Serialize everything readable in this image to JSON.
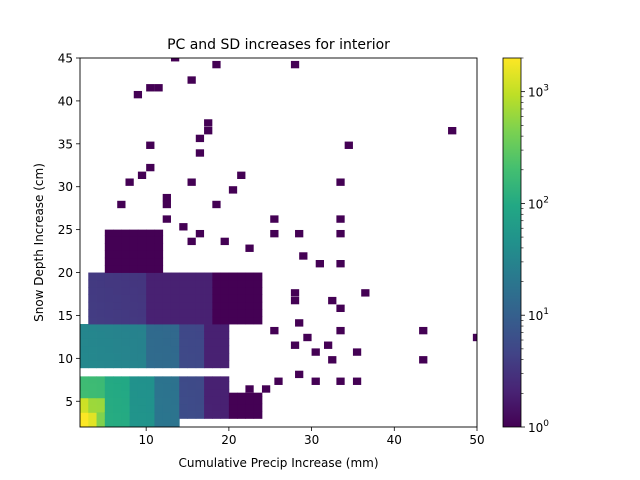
{
  "chart_data": {
    "type": "heatmap",
    "title": "PC and SD increases for interior",
    "xlabel": "Cumulative Precip Increase (mm)",
    "ylabel": "Snow Depth Increase (cm)",
    "xlim": [
      2,
      50
    ],
    "ylim": [
      2,
      45
    ],
    "xticks": [
      10,
      20,
      30,
      40,
      50
    ],
    "yticks": [
      5,
      10,
      15,
      20,
      25,
      30,
      35,
      40,
      45
    ],
    "colorbar": {
      "scale": "log",
      "colormap": "viridis",
      "min": 1,
      "max": 2000,
      "ticks": [
        {
          "value": 1,
          "base": "10",
          "exp": "0"
        },
        {
          "value": 10,
          "base": "10",
          "exp": "1"
        },
        {
          "value": 100,
          "base": "10",
          "exp": "2"
        },
        {
          "value": 1000,
          "base": "10",
          "exp": "3"
        }
      ]
    },
    "bin_width": [
      1,
      0.86
    ],
    "grid": false,
    "legend": "none",
    "regions": [
      {
        "x": [
          2,
          3
        ],
        "y": [
          2,
          3.7
        ],
        "count": 2000
      },
      {
        "x": [
          3,
          4
        ],
        "y": [
          2,
          3.7
        ],
        "count": 1500
      },
      {
        "x": [
          2,
          3
        ],
        "y": [
          3.7,
          5.4
        ],
        "count": 1200
      },
      {
        "x": [
          3,
          5
        ],
        "y": [
          3.7,
          5.4
        ],
        "count": 700
      },
      {
        "x": [
          4,
          6
        ],
        "y": [
          2,
          3.7
        ],
        "count": 500
      },
      {
        "x": [
          2,
          5
        ],
        "y": [
          5.4,
          7.9
        ],
        "count": 200
      },
      {
        "x": [
          5,
          8
        ],
        "y": [
          2,
          7.9
        ],
        "count": 120
      },
      {
        "x": [
          8,
          11
        ],
        "y": [
          2,
          7.9
        ],
        "count": 60
      },
      {
        "x": [
          11,
          14
        ],
        "y": [
          2,
          7.9
        ],
        "count": 25
      },
      {
        "x": [
          14,
          17
        ],
        "y": [
          3,
          7.9
        ],
        "count": 8
      },
      {
        "x": [
          17,
          20
        ],
        "y": [
          3,
          7.9
        ],
        "count": 3
      },
      {
        "x": [
          20,
          24
        ],
        "y": [
          3,
          6
        ],
        "count": 1
      },
      {
        "x": [
          2,
          10
        ],
        "y": [
          8.9,
          14.0
        ],
        "count": 40
      },
      {
        "x": [
          10,
          14
        ],
        "y": [
          8.9,
          14.0
        ],
        "count": 20
      },
      {
        "x": [
          14,
          17
        ],
        "y": [
          8.9,
          14.0
        ],
        "count": 8
      },
      {
        "x": [
          17,
          20
        ],
        "y": [
          8.9,
          14.0
        ],
        "count": 3
      },
      {
        "x": [
          3,
          10
        ],
        "y": [
          14.0,
          20.0
        ],
        "count": 5
      },
      {
        "x": [
          10,
          18
        ],
        "y": [
          14.0,
          20.0
        ],
        "count": 3
      },
      {
        "x": [
          18,
          24
        ],
        "y": [
          14.0,
          20.0
        ],
        "count": 1
      },
      {
        "x": [
          5,
          12
        ],
        "y": [
          20.0,
          25.0
        ],
        "count": 1
      }
    ],
    "sparse_cells": [
      [
        13,
        44.6
      ],
      [
        18,
        43.8
      ],
      [
        27.5,
        43.8
      ],
      [
        15,
        42.0
      ],
      [
        10,
        41.1
      ],
      [
        11,
        41.1
      ],
      [
        8.5,
        40.3
      ],
      [
        17,
        37.0
      ],
      [
        17,
        36.1
      ],
      [
        46.5,
        36.1
      ],
      [
        16,
        35.2
      ],
      [
        10,
        34.4
      ],
      [
        34,
        34.4
      ],
      [
        16,
        33.5
      ],
      [
        10,
        31.8
      ],
      [
        9,
        30.9
      ],
      [
        21,
        30.9
      ],
      [
        7.5,
        30.1
      ],
      [
        15,
        30.1
      ],
      [
        33,
        30.1
      ],
      [
        20,
        29.2
      ],
      [
        12,
        28.3
      ],
      [
        18,
        27.5
      ],
      [
        6.5,
        27.5
      ],
      [
        12,
        27.5
      ],
      [
        25,
        25.8
      ],
      [
        33,
        25.8
      ],
      [
        12,
        25.8
      ],
      [
        14,
        24.9
      ],
      [
        28,
        24.1
      ],
      [
        25,
        24.1
      ],
      [
        33,
        24.1
      ],
      [
        16,
        24.1
      ],
      [
        15,
        23.2
      ],
      [
        19,
        23.2
      ],
      [
        22,
        22.4
      ],
      [
        28.5,
        21.5
      ],
      [
        30.5,
        20.6
      ],
      [
        33,
        20.6
      ],
      [
        36,
        17.2
      ],
      [
        32,
        16.3
      ],
      [
        27.5,
        17.2
      ],
      [
        27.5,
        16.3
      ],
      [
        33,
        15.4
      ],
      [
        28,
        13.7
      ],
      [
        43,
        12.8
      ],
      [
        33,
        12.8
      ],
      [
        29,
        12.0
      ],
      [
        49.5,
        12.0
      ],
      [
        31.5,
        11.1
      ],
      [
        35,
        10.3
      ],
      [
        30,
        10.3
      ],
      [
        27.5,
        11.1
      ],
      [
        43,
        9.4
      ],
      [
        32,
        9.4
      ],
      [
        28,
        7.7
      ],
      [
        30,
        6.9
      ],
      [
        35,
        6.9
      ],
      [
        33,
        6.9
      ],
      [
        25.5,
        6.9
      ],
      [
        24,
        6.0
      ],
      [
        22,
        6.0
      ],
      [
        25,
        12.8
      ]
    ]
  }
}
